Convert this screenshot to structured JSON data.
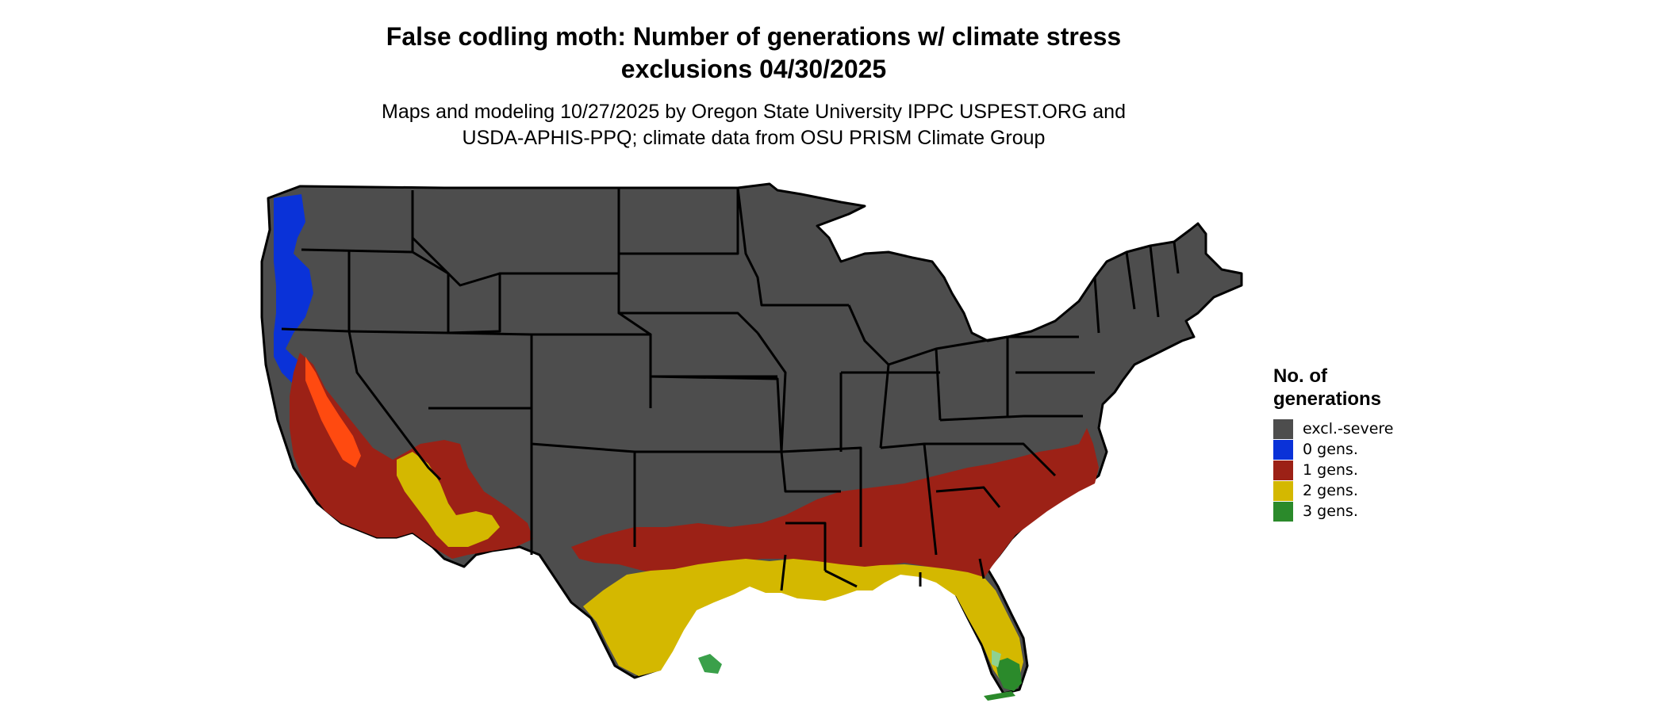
{
  "title": {
    "line1": "False codling moth: Number of generations w/ climate stress",
    "line2": "exclusions 04/30/2025"
  },
  "subtitle": {
    "line1": "Maps and modeling 10/27/2025 by Oregon State University IPPC USPEST.ORG and",
    "line2": "USDA-APHIS-PPQ; climate data from OSU PRISM Climate Group"
  },
  "legend": {
    "title_line1": "No. of",
    "title_line2": "generations",
    "items": [
      {
        "label": "excl.-severe",
        "color": "#4d4d4d"
      },
      {
        "label": "0 gens.",
        "color": "#0a32d8"
      },
      {
        "label": "1 gens.",
        "color": "#9c2116"
      },
      {
        "label": "2 gens.",
        "color": "#d4b800"
      },
      {
        "label": "3 gens.",
        "color": "#2b8a2b"
      }
    ]
  },
  "colors": {
    "land": "#4d4d4d",
    "border": "#000000",
    "orange_red": "#ff4a10",
    "light_green": "#8fd18f",
    "pale_yellow": "#e8d840"
  }
}
